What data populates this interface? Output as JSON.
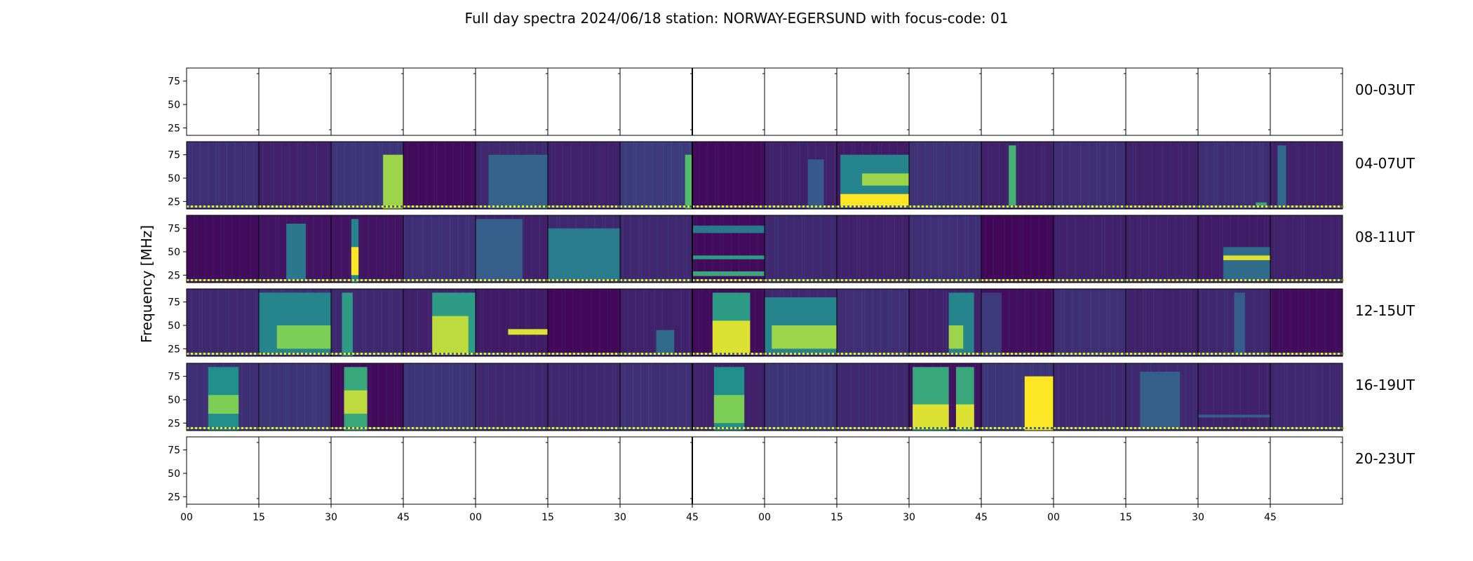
{
  "chart_data": {
    "type": "heatmap",
    "title": "Full day spectra 2024/06/18 station: NORWAY-EGERSUND with focus-code: 01",
    "ylabel": "Frequency [MHz]",
    "ylim": [
      17,
      89
    ],
    "yticks": [
      "25",
      "50",
      "75"
    ],
    "xticks": [
      "00",
      "15",
      "30",
      "45",
      "00",
      "15",
      "30",
      "45",
      "00",
      "15",
      "30",
      "45",
      "00",
      "15",
      "30",
      "45"
    ],
    "colormap": [
      "#440154",
      "#3b528b",
      "#21908d",
      "#5dc863",
      "#fde725"
    ],
    "panels_per_row": 16,
    "rows": [
      {
        "label": "00-03UT",
        "has_data": false,
        "panels": []
      },
      {
        "label": "04-07UT",
        "has_data": true,
        "panels": [
          {
            "base": 0.14,
            "bands": []
          },
          {
            "base": 0.1,
            "bands": []
          },
          {
            "base": 0.16,
            "bands": [
              {
                "x0": 0.72,
                "x1": 1.0,
                "f0": 17,
                "f1": 75,
                "v": 0.85
              }
            ]
          },
          {
            "base": 0.03,
            "bands": []
          },
          {
            "base": 0.12,
            "bands": [
              {
                "x0": 0.18,
                "x1": 1.0,
                "f0": 17,
                "f1": 75,
                "v": 0.32
              }
            ]
          },
          {
            "base": 0.1,
            "bands": []
          },
          {
            "base": 0.18,
            "bands": [
              {
                "x0": 0.9,
                "x1": 1.0,
                "f0": 17,
                "f1": 75,
                "v": 0.7
              }
            ]
          },
          {
            "base": 0.03,
            "bands": []
          },
          {
            "base": 0.1,
            "bands": [
              {
                "x0": 0.6,
                "x1": 0.82,
                "f0": 17,
                "f1": 70,
                "v": 0.28
              }
            ]
          },
          {
            "base": 0.08,
            "bands": [
              {
                "x0": 0.05,
                "x1": 1.0,
                "f0": 20,
                "f1": 75,
                "v": 0.45
              },
              {
                "x0": 0.05,
                "x1": 1.0,
                "f0": 20,
                "f1": 33,
                "v": 1.0
              },
              {
                "x0": 0.35,
                "x1": 1.0,
                "f0": 42,
                "f1": 55,
                "v": 0.85
              }
            ]
          },
          {
            "base": 0.15,
            "bands": []
          },
          {
            "base": 0.1,
            "bands": [
              {
                "x0": 0.38,
                "x1": 0.48,
                "f0": 20,
                "f1": 85,
                "v": 0.65
              }
            ]
          },
          {
            "base": 0.14,
            "bands": []
          },
          {
            "base": 0.1,
            "bands": []
          },
          {
            "base": 0.14,
            "bands": [
              {
                "x0": 0.8,
                "x1": 0.95,
                "f0": 20,
                "f1": 24,
                "v": 0.6
              }
            ]
          },
          {
            "base": 0.1,
            "bands": [
              {
                "x0": 0.1,
                "x1": 0.22,
                "f0": 20,
                "f1": 85,
                "v": 0.35
              }
            ]
          }
        ]
      },
      {
        "label": "08-11UT",
        "has_data": true,
        "panels": [
          {
            "base": 0.03,
            "bands": []
          },
          {
            "base": 0.06,
            "bands": [
              {
                "x0": 0.38,
                "x1": 0.65,
                "f0": 20,
                "f1": 80,
                "v": 0.4
              }
            ]
          },
          {
            "base": 0.06,
            "bands": [
              {
                "x0": 0.28,
                "x1": 0.38,
                "f0": 17,
                "f1": 85,
                "v": 0.45
              },
              {
                "x0": 0.28,
                "x1": 0.38,
                "f0": 25,
                "f1": 55,
                "v": 1.0
              }
            ]
          },
          {
            "base": 0.14,
            "bands": []
          },
          {
            "base": 0.1,
            "bands": [
              {
                "x0": 0.0,
                "x1": 0.65,
                "f0": 20,
                "f1": 85,
                "v": 0.3
              }
            ]
          },
          {
            "base": 0.12,
            "bands": [
              {
                "x0": 0.0,
                "x1": 1.0,
                "f0": 20,
                "f1": 75,
                "v": 0.42
              }
            ]
          },
          {
            "base": 0.12,
            "bands": []
          },
          {
            "base": 0.03,
            "bands": [
              {
                "x0": 0.0,
                "x1": 1.0,
                "f0": 70,
                "f1": 78,
                "v": 0.4
              },
              {
                "x0": 0.0,
                "x1": 1.0,
                "f0": 42,
                "f1": 46,
                "v": 0.55
              },
              {
                "x0": 0.0,
                "x1": 1.0,
                "f0": 24,
                "f1": 29,
                "v": 0.6
              }
            ]
          },
          {
            "base": 0.12,
            "bands": []
          },
          {
            "base": 0.1,
            "bands": []
          },
          {
            "base": 0.14,
            "bands": []
          },
          {
            "base": 0.02,
            "bands": []
          },
          {
            "base": 0.1,
            "bands": []
          },
          {
            "base": 0.1,
            "bands": []
          },
          {
            "base": 0.08,
            "bands": [
              {
                "x0": 0.35,
                "x1": 1.0,
                "f0": 20,
                "f1": 55,
                "v": 0.35
              },
              {
                "x0": 0.35,
                "x1": 1.0,
                "f0": 41,
                "f1": 46,
                "v": 0.95
              }
            ]
          },
          {
            "base": 0.1,
            "bands": []
          }
        ]
      },
      {
        "label": "12-15UT",
        "has_data": true,
        "panels": [
          {
            "base": 0.12,
            "bands": []
          },
          {
            "base": 0.14,
            "bands": [
              {
                "x0": 0.0,
                "x1": 1.0,
                "f0": 20,
                "f1": 85,
                "v": 0.45
              },
              {
                "x0": 0.25,
                "x1": 1.0,
                "f0": 25,
                "f1": 50,
                "v": 0.8
              }
            ]
          },
          {
            "base": 0.12,
            "bands": [
              {
                "x0": 0.15,
                "x1": 0.3,
                "f0": 17,
                "f1": 85,
                "v": 0.55
              }
            ]
          },
          {
            "base": 0.1,
            "bands": [
              {
                "x0": 0.4,
                "x1": 1.0,
                "f0": 20,
                "f1": 85,
                "v": 0.55
              },
              {
                "x0": 0.4,
                "x1": 0.9,
                "f0": 20,
                "f1": 60,
                "v": 0.9
              }
            ]
          },
          {
            "base": 0.08,
            "bands": [
              {
                "x0": 0.45,
                "x1": 1.0,
                "f0": 40,
                "f1": 46,
                "v": 0.95
              }
            ]
          },
          {
            "base": 0.02,
            "bands": []
          },
          {
            "base": 0.1,
            "bands": [
              {
                "x0": 0.5,
                "x1": 0.75,
                "f0": 20,
                "f1": 45,
                "v": 0.35
              }
            ]
          },
          {
            "base": 0.03,
            "bands": [
              {
                "x0": 0.28,
                "x1": 0.8,
                "f0": 20,
                "f1": 85,
                "v": 0.55
              },
              {
                "x0": 0.28,
                "x1": 0.8,
                "f0": 20,
                "f1": 55,
                "v": 0.95
              }
            ]
          },
          {
            "base": 0.12,
            "bands": [
              {
                "x0": 0.0,
                "x1": 1.0,
                "f0": 20,
                "f1": 80,
                "v": 0.45
              },
              {
                "x0": 0.1,
                "x1": 1.0,
                "f0": 25,
                "f1": 50,
                "v": 0.85
              }
            ]
          },
          {
            "base": 0.14,
            "bands": []
          },
          {
            "base": 0.1,
            "bands": [
              {
                "x0": 0.55,
                "x1": 0.9,
                "f0": 20,
                "f1": 85,
                "v": 0.45
              },
              {
                "x0": 0.55,
                "x1": 0.75,
                "f0": 25,
                "f1": 50,
                "v": 0.85
              }
            ]
          },
          {
            "base": 0.04,
            "bands": [
              {
                "x0": 0.0,
                "x1": 0.28,
                "f0": 17,
                "f1": 85,
                "v": 0.18
              }
            ]
          },
          {
            "base": 0.14,
            "bands": []
          },
          {
            "base": 0.1,
            "bands": []
          },
          {
            "base": 0.12,
            "bands": [
              {
                "x0": 0.5,
                "x1": 0.65,
                "f0": 20,
                "f1": 85,
                "v": 0.3
              }
            ]
          },
          {
            "base": 0.03,
            "bands": []
          }
        ]
      },
      {
        "label": "16-19UT",
        "has_data": true,
        "panels": [
          {
            "base": 0.14,
            "bands": [
              {
                "x0": 0.3,
                "x1": 0.72,
                "f0": 17,
                "f1": 85,
                "v": 0.5
              },
              {
                "x0": 0.3,
                "x1": 0.72,
                "f0": 35,
                "f1": 55,
                "v": 0.8
              }
            ]
          },
          {
            "base": 0.16,
            "bands": []
          },
          {
            "base": 0.03,
            "bands": [
              {
                "x0": 0.18,
                "x1": 0.5,
                "f0": 17,
                "f1": 85,
                "v": 0.6
              },
              {
                "x0": 0.18,
                "x1": 0.5,
                "f0": 35,
                "f1": 60,
                "v": 0.9
              }
            ]
          },
          {
            "base": 0.16,
            "bands": []
          },
          {
            "base": 0.12,
            "bands": []
          },
          {
            "base": 0.12,
            "bands": []
          },
          {
            "base": 0.14,
            "bands": []
          },
          {
            "base": 0.1,
            "bands": [
              {
                "x0": 0.3,
                "x1": 0.72,
                "f0": 17,
                "f1": 85,
                "v": 0.5
              },
              {
                "x0": 0.3,
                "x1": 0.72,
                "f0": 25,
                "f1": 55,
                "v": 0.8
              }
            ]
          },
          {
            "base": 0.16,
            "bands": []
          },
          {
            "base": 0.12,
            "bands": []
          },
          {
            "base": 0.05,
            "bands": [
              {
                "x0": 0.05,
                "x1": 0.55,
                "f0": 17,
                "f1": 85,
                "v": 0.6
              },
              {
                "x0": 0.05,
                "x1": 0.55,
                "f0": 20,
                "f1": 45,
                "v": 0.95
              },
              {
                "x0": 0.65,
                "x1": 0.9,
                "f0": 17,
                "f1": 85,
                "v": 0.6
              },
              {
                "x0": 0.65,
                "x1": 0.9,
                "f0": 20,
                "f1": 45,
                "v": 0.95
              }
            ]
          },
          {
            "base": 0.16,
            "bands": [
              {
                "x0": 0.6,
                "x1": 1.0,
                "f0": 17,
                "f1": 75,
                "v": 1.0
              }
            ]
          },
          {
            "base": 0.12,
            "bands": []
          },
          {
            "base": 0.12,
            "bands": [
              {
                "x0": 0.2,
                "x1": 0.75,
                "f0": 20,
                "f1": 80,
                "v": 0.3
              }
            ]
          },
          {
            "base": 0.1,
            "bands": [
              {
                "x0": 0.0,
                "x1": 1.0,
                "f0": 31,
                "f1": 34,
                "v": 0.3
              }
            ]
          },
          {
            "base": 0.12,
            "bands": []
          }
        ]
      },
      {
        "label": "20-23UT",
        "has_data": false,
        "panels": []
      }
    ]
  }
}
